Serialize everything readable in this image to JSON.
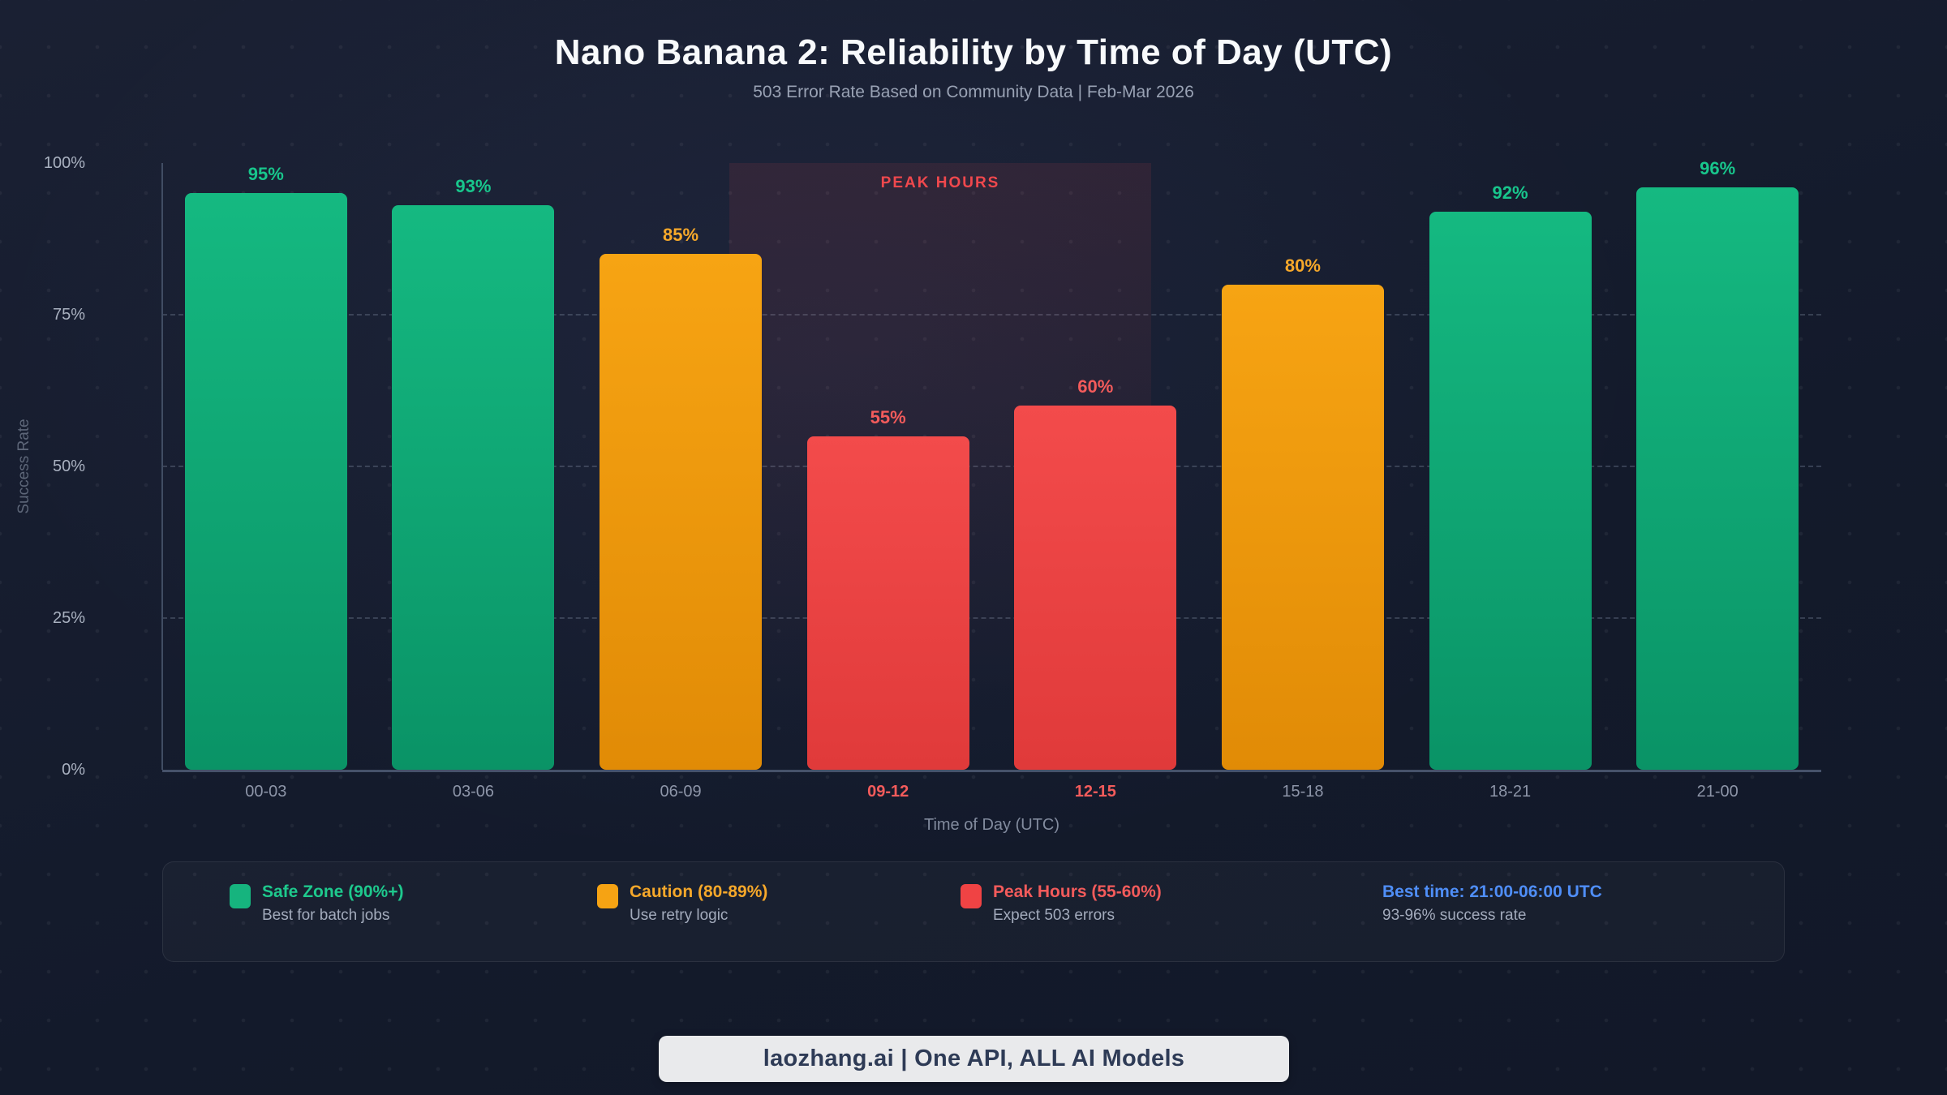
{
  "page": {
    "title": "Nano Banana 2: Reliability by Time of Day (UTC)",
    "subtitle": "503 Error Rate Based on Community Data | Feb-Mar 2026"
  },
  "chart_data": {
    "type": "bar",
    "title": "Nano Banana 2: Reliability by Time of Day (UTC)",
    "subtitle": "503 Error Rate Based on Community Data | Feb-Mar 2026",
    "categories": [
      "00-03",
      "03-06",
      "06-09",
      "09-12",
      "12-15",
      "15-18",
      "18-21",
      "21-00"
    ],
    "values": [
      95,
      93,
      85,
      55,
      60,
      80,
      92,
      96
    ],
    "value_labels": [
      "95%",
      "93%",
      "85%",
      "55%",
      "60%",
      "80%",
      "92%",
      "96%"
    ],
    "zones": [
      "safe",
      "safe",
      "caution",
      "peak",
      "peak",
      "caution",
      "safe",
      "safe"
    ],
    "xlabel": "Time of Day (UTC)",
    "ylabel": "Success Rate",
    "ylim": [
      0,
      100
    ],
    "yticks": [
      {
        "value": 0,
        "label": "0%"
      },
      {
        "value": 25,
        "label": "25%"
      },
      {
        "value": 50,
        "label": "50%"
      },
      {
        "value": 75,
        "label": "75%"
      },
      {
        "value": 100,
        "label": "100%"
      }
    ],
    "grid": "dashed horizontal lines at 25/50/75",
    "legend_position": "bottom",
    "annotation": {
      "label": "PEAK HOURS",
      "span_categories": [
        "09-12",
        "12-15"
      ]
    }
  },
  "zone_styles": {
    "safe": {
      "bar_top": "#15b981",
      "bar_bottom": "#0a9366",
      "label_color": "#18c68c"
    },
    "caution": {
      "bar_top": "#f7a413",
      "bar_bottom": "#e18b06",
      "label_color": "#f6a82a"
    },
    "peak": {
      "bar_top": "#f34b4b",
      "bar_bottom": "#e03a3a",
      "label_color": "#f35b5b"
    }
  },
  "legend": {
    "items": [
      {
        "zone": "safe",
        "swatch": "#16b47e",
        "title": "Safe Zone (90%+)",
        "title_color": "#1ec98d",
        "desc": "Best for batch jobs"
      },
      {
        "zone": "caution",
        "swatch": "#f6a313",
        "title": "Caution (80-89%)",
        "title_color": "#f6a82a",
        "desc": "Use retry logic"
      },
      {
        "zone": "peak",
        "swatch": "#f04344",
        "title": "Peak Hours (55-60%)",
        "title_color": "#f35b5b",
        "desc": "Expect 503 errors"
      },
      {
        "zone": "none",
        "swatch": "",
        "title": "Best time: 21:00-06:00 UTC",
        "title_color": "#4f8ef7",
        "desc": "93-96% success rate"
      }
    ]
  },
  "footer": {
    "badge_text": "laozhang.ai | One API, ALL AI Models"
  },
  "colors": {
    "background": "#141a2b",
    "axis": "#46526a",
    "grid": "rgba(148,163,184,0.28)",
    "tick_text": "#a9b1c0",
    "x_tick_text": "#8d95a8",
    "peak_annotation": "#f0484d",
    "best_time_blue": "#4f8ef7",
    "footer_pill_bg": "#e9eaec",
    "footer_pill_text": "#2e3b56"
  }
}
